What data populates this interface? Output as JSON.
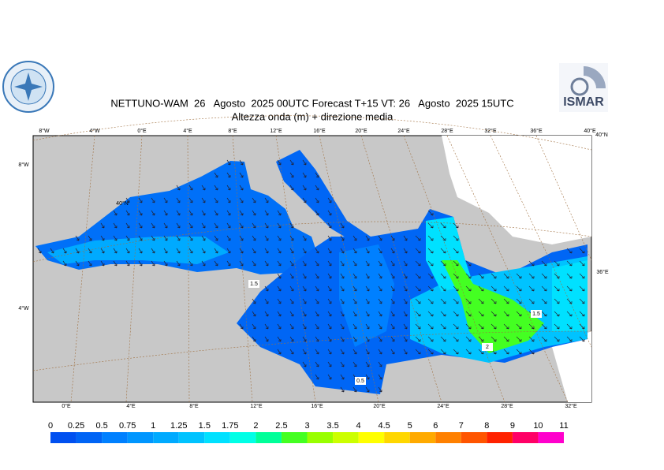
{
  "header": {
    "title": "NETTUNO-WAM  26   Agosto  2025 00UTC Forecast T+15 VT: 26   Agosto  2025 15UTC",
    "subtitle": "Altezza onda (m) + direzione media"
  },
  "logo": {
    "text": "ISMAR"
  },
  "map": {
    "top_labels": [
      "8°W",
      "4°W",
      "0°E",
      "4°E",
      "8°E",
      "12°E",
      "16°E",
      "20°E",
      "24°E",
      "28°E",
      "32°E",
      "36°E",
      "40°E"
    ],
    "corner_label": "40°N",
    "left_labels": [
      "8°W",
      "4°W"
    ],
    "inner_label": "40°N",
    "right_label": "36°E",
    "bottom_labels": [
      "0°E",
      "4°E",
      "8°E",
      "12°E",
      "16°E",
      "20°E",
      "24°E",
      "28°E",
      "32°E"
    ],
    "contour_labels": [
      "1.5",
      "1.5",
      "2",
      "0.5"
    ]
  },
  "colorbar": {
    "bounds": [
      0,
      0.25,
      0.5,
      0.75,
      1,
      1.25,
      1.5,
      1.75,
      2,
      2.5,
      3,
      3.5,
      4,
      4.5,
      5,
      6,
      7,
      8,
      9,
      10,
      11
    ],
    "colors": [
      "#0050f0",
      "#0064f5",
      "#0080ff",
      "#0096ff",
      "#00aaff",
      "#00c3ff",
      "#00e1ff",
      "#00ffe6",
      "#00ff99",
      "#44ff22",
      "#99ff00",
      "#ccff00",
      "#ffff00",
      "#ffd700",
      "#ffaa00",
      "#ff8000",
      "#ff5500",
      "#ff2200",
      "#ff0066",
      "#ff00cc"
    ]
  }
}
